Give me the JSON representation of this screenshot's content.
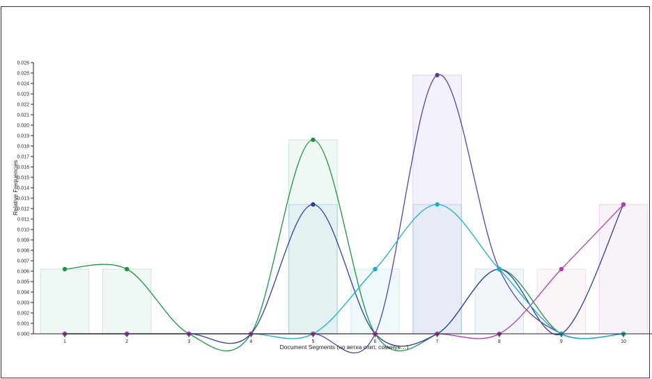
{
  "chart_data": {
    "type": "bar",
    "xlabel": "Document Segments (но ветка спит, сомкнув…)",
    "ylabel": "Relative Frequencies",
    "categories": [
      "1",
      "2",
      "3",
      "4",
      "5",
      "6",
      "7",
      "8",
      "9",
      "10"
    ],
    "ylim": [
      0,
      0.026
    ],
    "y_ticks": [
      "0.000",
      "0.001",
      "0.002",
      "0.003",
      "0.004",
      "0.005",
      "0.006",
      "0.007",
      "0.008",
      "0.009",
      "0.010",
      "0.011",
      "0.012",
      "0.013",
      "0.014",
      "0.015",
      "0.016",
      "0.017",
      "0.018",
      "0.019",
      "0.020",
      "0.021",
      "0.022",
      "0.023",
      "0.024",
      "0.025",
      "0.026"
    ],
    "grid": false,
    "series": [
      {
        "color": "#1a9641",
        "values": [
          0.0062,
          0.0062,
          0,
          0,
          0.0186,
          0,
          0,
          0.0062,
          0,
          0
        ]
      },
      {
        "color": "#2b3f9e",
        "values": [
          0,
          0,
          0,
          0,
          0.0124,
          0,
          0,
          0.0062,
          0,
          0.0124
        ]
      },
      {
        "color": "#5a3fa8",
        "values": [
          0,
          0,
          0,
          0,
          0,
          0,
          0.0248,
          0.0062,
          0,
          0
        ]
      },
      {
        "color": "#17b0c6",
        "values": [
          0,
          0,
          0,
          0,
          0,
          0.0062,
          0.0124,
          0.0062,
          0,
          0
        ]
      },
      {
        "color": "#b040a8",
        "values": [
          0,
          0,
          0,
          0,
          0,
          0,
          0,
          0,
          0.0062,
          0.0124
        ]
      }
    ],
    "bars": [
      {
        "value": 0.0062,
        "color": "#1a9641"
      },
      {
        "value": 0.0062,
        "color": "#1a9641"
      },
      {
        "value": 0,
        "color": "#1a9641"
      },
      {
        "value": 0,
        "color": "#1a9641"
      },
      {
        "value": 0.0186,
        "color": "#1a9641"
      },
      {
        "value": 0.0062,
        "color": "#17b0c6"
      },
      {
        "value": 0.0248,
        "color": "#5a3fa8"
      },
      {
        "value": 0.0062,
        "color": "#2b7fb0"
      },
      {
        "value": 0.0062,
        "color": "#d070b0"
      },
      {
        "value": 0.0124,
        "color": "#b040a8"
      }
    ],
    "bars_overlay": [
      {
        "index": 4,
        "value": 0.0124,
        "color": "#5aa0d8"
      },
      {
        "index": 6,
        "value": 0.0124,
        "color": "#5aa0d8"
      }
    ]
  }
}
